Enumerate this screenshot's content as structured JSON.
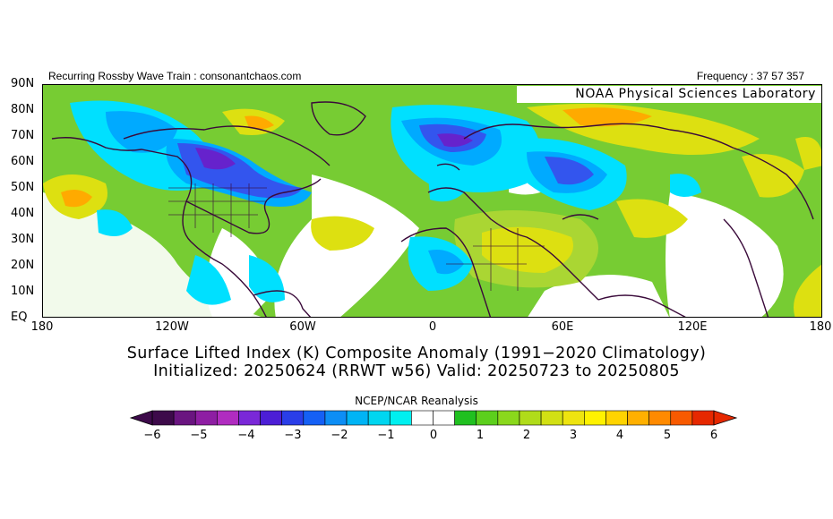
{
  "header": {
    "left": "Recurring Rossby Wave Train : consonantchaos.com",
    "right": "Frequency : 37 57 357"
  },
  "map": {
    "credit": "NOAA Physical Sciences Laboratory",
    "lat_labels": [
      "90N",
      "80N",
      "70N",
      "60N",
      "50N",
      "40N",
      "30N",
      "20N",
      "10N",
      "EQ"
    ],
    "lon_labels": [
      "180",
      "120W",
      "60W",
      "0",
      "60E",
      "120E",
      "180"
    ],
    "lon_range": [
      -180,
      180
    ],
    "lat_range": [
      0,
      90
    ],
    "colors": {
      "neutral": "#ffffff",
      "pos1": "#77cc33",
      "pos2": "#aad633",
      "pos3": "#dde011",
      "pos4": "#ffaa00",
      "neg1": "#00e0ff",
      "neg2": "#00aaff",
      "neg3": "#3355ee",
      "neg4": "#6622cc",
      "coast": "#3a0a3a"
    }
  },
  "title": {
    "line1": "Surface Lifted Index (K) Composite Anomaly (1991−2020 Climatology)",
    "line2": "Initialized: 20250624 (RRWT w56) Valid: 20250723 to 20250805"
  },
  "colorbar": {
    "title": "NCEP/NCAR Reanalysis",
    "labels": [
      "−6",
      "−5",
      "−4",
      "−3",
      "−2",
      "−1",
      "0",
      "1",
      "2",
      "3",
      "4",
      "5",
      "6"
    ],
    "colors": [
      "#3d0a4a",
      "#6a1580",
      "#8e1ea3",
      "#b02cc0",
      "#7a28d8",
      "#4c1ed6",
      "#2a3ee8",
      "#1560f5",
      "#0d8ef5",
      "#00b4f5",
      "#00d6f0",
      "#00f0f0",
      "#ffffff",
      "#ffffff",
      "#20c020",
      "#5ccf1c",
      "#8ad81c",
      "#b0dc1a",
      "#d2e014",
      "#eee410",
      "#fff200",
      "#ffd400",
      "#ffb000",
      "#ff8a00",
      "#f85a00",
      "#e62800"
    ]
  }
}
